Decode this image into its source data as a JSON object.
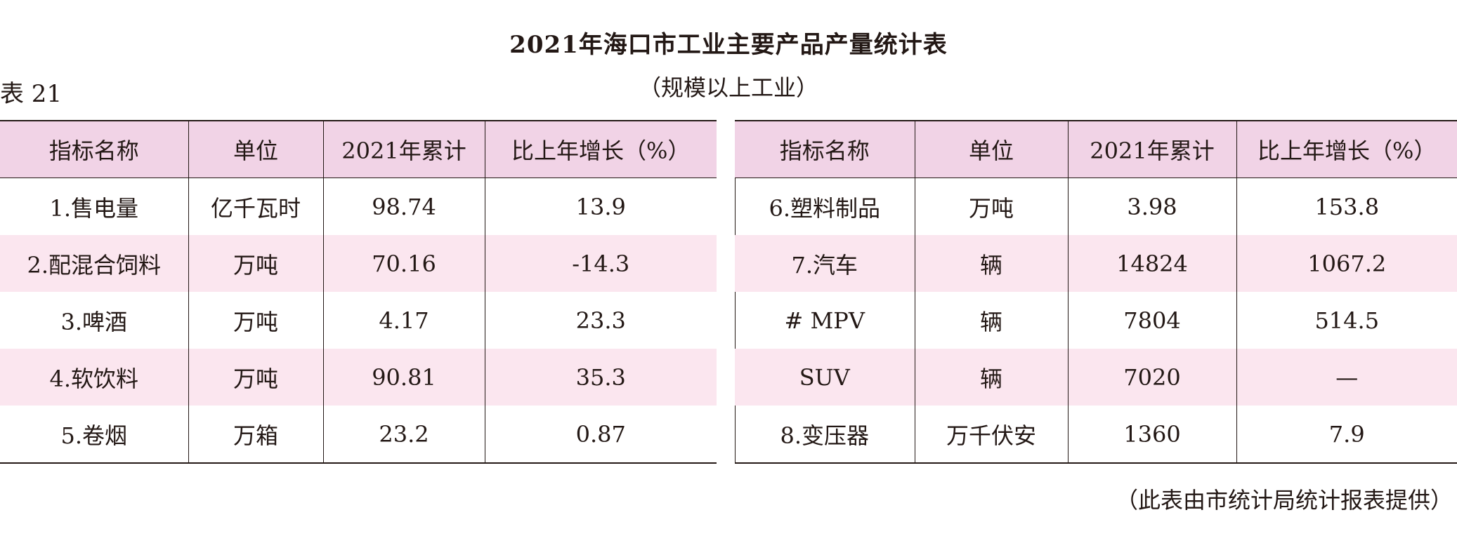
{
  "title": "2021年海口市工业主要产品产量统计表",
  "subtitle": "（规模以上工业）",
  "table_label": "表 21",
  "headers": [
    "指标名称",
    "单位",
    "2021年累计",
    "比上年增长（%）"
  ],
  "left_rows": [
    [
      "1.售电量",
      "亿千瓦时",
      "98.74",
      "13.9"
    ],
    [
      "2.配混合饲料",
      "万吨",
      "70.16",
      "-14.3"
    ],
    [
      "3.啤酒",
      "万吨",
      "4.17",
      "23.3"
    ],
    [
      "4.软饮料",
      "万吨",
      "90.81",
      "35.3"
    ],
    [
      "5.卷烟",
      "万箱",
      "23.2",
      "0.87"
    ]
  ],
  "right_rows": [
    [
      "6.塑料制品",
      "万吨",
      "3.98",
      "153.8"
    ],
    [
      "7.汽车",
      "辆",
      "14824",
      "1067.2"
    ],
    [
      "# MPV",
      "辆",
      "7804",
      "514.5"
    ],
    [
      "SUV",
      "辆",
      "7020",
      "—"
    ],
    [
      "8.变压器",
      "万千伏安",
      "1360",
      "7.9"
    ]
  ],
  "footnote": "（此表由市统计局统计报表提供）",
  "colors": {
    "header_bg": "#f1d3e6",
    "alt_row_bg": "#fbe6ef",
    "rule": "#231815"
  }
}
